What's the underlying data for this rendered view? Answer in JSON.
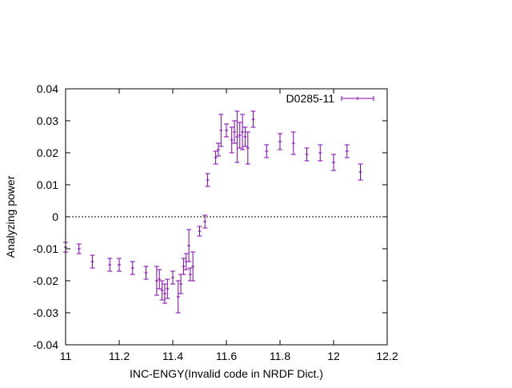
{
  "chart_data": {
    "type": "scatter",
    "title": "",
    "xlabel": "INC-ENGY(Invalid code in NRDF Dict.)",
    "ylabel": "Analyzing power",
    "xlim": [
      11,
      12.2
    ],
    "ylim": [
      -0.04,
      0.04
    ],
    "xticks": [
      "11",
      "11.2",
      "11.4",
      "11.6",
      "11.8",
      "12",
      "12.2"
    ],
    "yticks": [
      "-0.04",
      "-0.03",
      "-0.02",
      "-0.01",
      "0",
      "0.01",
      "0.02",
      "0.03",
      "0.04"
    ],
    "grid": false,
    "legend_position": "top-right",
    "zero_line": true,
    "series": [
      {
        "name": "D0285-11",
        "color": "#8000b0",
        "points": [
          {
            "x": 11.0,
            "y": -0.0095,
            "err": 0.0015
          },
          {
            "x": 11.05,
            "y": -0.01,
            "err": 0.0015
          },
          {
            "x": 11.1,
            "y": -0.014,
            "err": 0.002
          },
          {
            "x": 11.165,
            "y": -0.015,
            "err": 0.002
          },
          {
            "x": 11.2,
            "y": -0.015,
            "err": 0.002
          },
          {
            "x": 11.25,
            "y": -0.016,
            "err": 0.002
          },
          {
            "x": 11.3,
            "y": -0.0175,
            "err": 0.002
          },
          {
            "x": 11.34,
            "y": -0.02,
            "err": 0.0045
          },
          {
            "x": 11.35,
            "y": -0.0195,
            "err": 0.003
          },
          {
            "x": 11.36,
            "y": -0.023,
            "err": 0.003
          },
          {
            "x": 11.37,
            "y": -0.024,
            "err": 0.003
          },
          {
            "x": 11.38,
            "y": -0.0225,
            "err": 0.003
          },
          {
            "x": 11.4,
            "y": -0.019,
            "err": 0.002
          },
          {
            "x": 11.42,
            "y": -0.025,
            "err": 0.005
          },
          {
            "x": 11.43,
            "y": -0.021,
            "err": 0.003
          },
          {
            "x": 11.44,
            "y": -0.0155,
            "err": 0.0025
          },
          {
            "x": 11.45,
            "y": -0.014,
            "err": 0.0025
          },
          {
            "x": 11.46,
            "y": -0.009,
            "err": 0.005
          },
          {
            "x": 11.465,
            "y": -0.018,
            "err": 0.002
          },
          {
            "x": 11.475,
            "y": -0.0155,
            "err": 0.0045
          },
          {
            "x": 11.5,
            "y": -0.0045,
            "err": 0.0015
          },
          {
            "x": 11.52,
            "y": -0.0015,
            "err": 0.002
          },
          {
            "x": 11.53,
            "y": 0.0115,
            "err": 0.002
          },
          {
            "x": 11.56,
            "y": 0.0185,
            "err": 0.002
          },
          {
            "x": 11.57,
            "y": 0.021,
            "err": 0.002
          },
          {
            "x": 11.58,
            "y": 0.027,
            "err": 0.005
          },
          {
            "x": 11.6,
            "y": 0.027,
            "err": 0.002
          },
          {
            "x": 11.62,
            "y": 0.024,
            "err": 0.004
          },
          {
            "x": 11.63,
            "y": 0.0265,
            "err": 0.0035
          },
          {
            "x": 11.64,
            "y": 0.025,
            "err": 0.008
          },
          {
            "x": 11.65,
            "y": 0.0255,
            "err": 0.004
          },
          {
            "x": 11.66,
            "y": 0.0265,
            "err": 0.0055
          },
          {
            "x": 11.67,
            "y": 0.025,
            "err": 0.003
          },
          {
            "x": 11.68,
            "y": 0.0215,
            "err": 0.005
          },
          {
            "x": 11.7,
            "y": 0.0305,
            "err": 0.0025
          },
          {
            "x": 11.75,
            "y": 0.0205,
            "err": 0.002
          },
          {
            "x": 11.8,
            "y": 0.0235,
            "err": 0.0025
          },
          {
            "x": 11.85,
            "y": 0.023,
            "err": 0.0035
          },
          {
            "x": 11.9,
            "y": 0.0195,
            "err": 0.002
          },
          {
            "x": 11.95,
            "y": 0.02,
            "err": 0.0025
          },
          {
            "x": 12.0,
            "y": 0.017,
            "err": 0.0025
          },
          {
            "x": 12.05,
            "y": 0.0205,
            "err": 0.002
          },
          {
            "x": 12.1,
            "y": 0.014,
            "err": 0.0025
          }
        ]
      }
    ]
  }
}
